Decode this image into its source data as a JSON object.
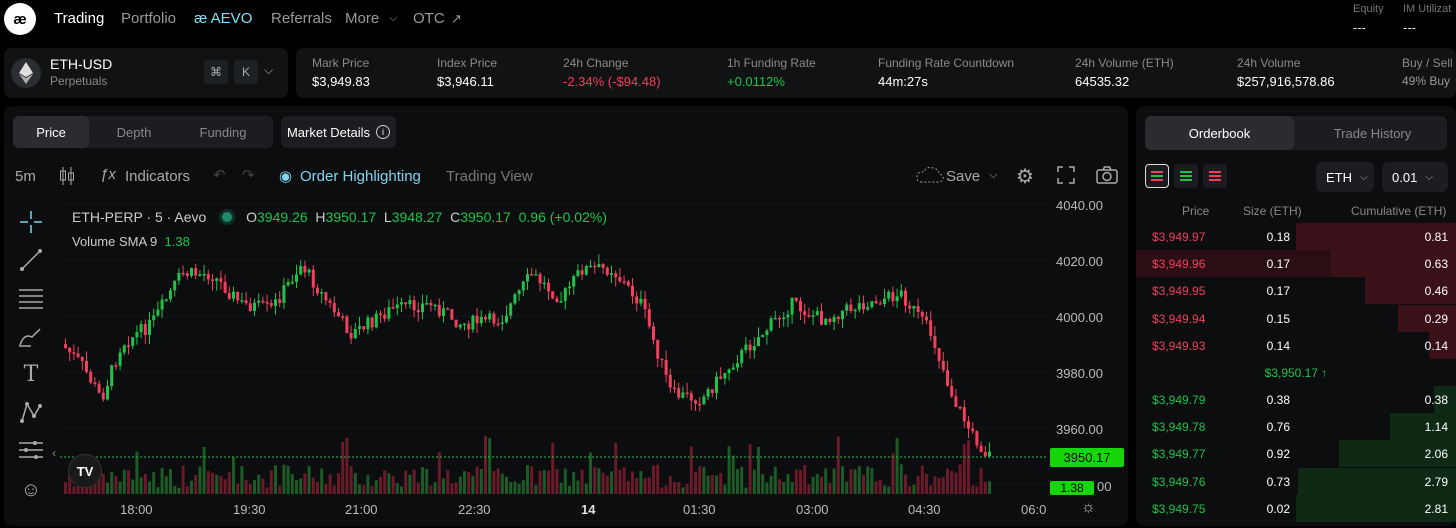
{
  "nav": {
    "logo": "æ",
    "items": [
      "Trading",
      "Portfolio",
      "æ AEVO",
      "Referrals",
      "More",
      "OTC"
    ],
    "equity_label": "Equity",
    "equity_value": "---",
    "im_label": "IM Utilizat",
    "im_value": "---"
  },
  "market": {
    "pair": "ETH-USD",
    "type": "Perpetuals",
    "kbd1": "⌘",
    "kbd2": "K",
    "stats": [
      {
        "label": "Mark Price",
        "value": "$3,949.83"
      },
      {
        "label": "Index Price",
        "value": "$3,946.11"
      },
      {
        "label": "24h Change",
        "value": "-2.34% (-$94.48)"
      },
      {
        "label": "1h Funding Rate",
        "value": "+0.0112%"
      },
      {
        "label": "Funding Rate Countdown",
        "value": "44m:27s"
      },
      {
        "label": "24h Volume (ETH)",
        "value": "64535.32"
      },
      {
        "label": "24h Volume",
        "value": "$257,916,578.86"
      },
      {
        "label": "Buy / Sell",
        "value": "49% Buy"
      }
    ]
  },
  "chart_tabs": [
    "Price",
    "Depth",
    "Funding"
  ],
  "market_details": "Market Details",
  "toolbar": {
    "interval": "5m",
    "indicators": "Indicators",
    "order_highlighting": "Order Highlighting",
    "trading_view": "Trading View",
    "save": "Save"
  },
  "legend": {
    "symbol": "ETH-PERP · 5 · Aevo",
    "o_label": "O",
    "o": "3949.26",
    "h_label": "H",
    "h": "3950.17",
    "l_label": "L",
    "l": "3948.27",
    "c_label": "C",
    "c": "3950.17",
    "change": "0.96 (+0.02%)",
    "volume_label": "Volume SMA 9",
    "volume_value": "1.38"
  },
  "price_axis": [
    "4040.00",
    "4020.00",
    "4000.00",
    "3980.00",
    "3960.00"
  ],
  "price_tag": "3950.17",
  "volume_tag": "1.38",
  "axis_tail": "00",
  "time_axis": [
    "18:00",
    "19:30",
    "21:00",
    "22:30",
    "14",
    "01:30",
    "03:00",
    "04:30",
    "06:0"
  ],
  "colors": {
    "up": "#21c24a",
    "down": "#f23f5d",
    "accent": "#7fd5ef"
  },
  "orderbook": {
    "tabs": [
      "Orderbook",
      "Trade History"
    ],
    "asset_select": "ETH",
    "tick_select": "0.01",
    "headers": [
      "Price",
      "Size (ETH)",
      "Cumulative (ETH)"
    ],
    "asks": [
      {
        "price": "$3,949.97",
        "size": "0.18",
        "cum": "0.81",
        "depth": 1.0
      },
      {
        "price": "$3,949.96",
        "size": "0.17",
        "cum": "0.63",
        "depth": 0.78
      },
      {
        "price": "$3,949.95",
        "size": "0.17",
        "cum": "0.46",
        "depth": 0.57
      },
      {
        "price": "$3,949.94",
        "size": "0.15",
        "cum": "0.29",
        "depth": 0.36
      },
      {
        "price": "$3,949.93",
        "size": "0.14",
        "cum": "0.14",
        "depth": 0.17
      }
    ],
    "mid": "$3,950.17 ↑",
    "bids": [
      {
        "price": "$3,949.79",
        "size": "0.38",
        "cum": "0.38",
        "depth": 0.14
      },
      {
        "price": "$3,949.78",
        "size": "0.76",
        "cum": "1.14",
        "depth": 0.41
      },
      {
        "price": "$3,949.77",
        "size": "0.92",
        "cum": "2.06",
        "depth": 0.73
      },
      {
        "price": "$3,949.76",
        "size": "0.73",
        "cum": "2.79",
        "depth": 0.99
      },
      {
        "price": "$3,949.75",
        "size": "0.02",
        "cum": "2.81",
        "depth": 1.0
      }
    ]
  }
}
